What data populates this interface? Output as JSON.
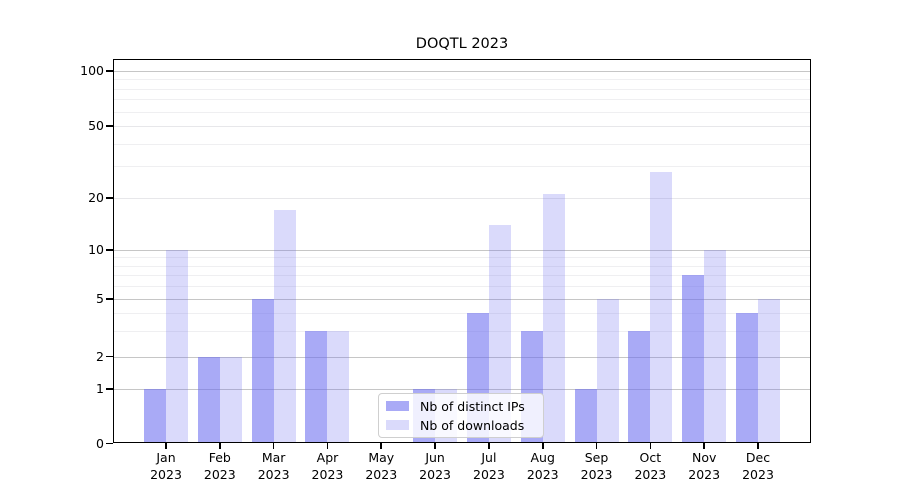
{
  "chart_data": {
    "type": "bar",
    "title": "DOQTL 2023",
    "categories": [
      "Jan 2023",
      "Feb 2023",
      "Mar 2023",
      "Apr 2023",
      "May 2023",
      "Jun 2023",
      "Jul 2023",
      "Aug 2023",
      "Sep 2023",
      "Oct 2023",
      "Nov 2023",
      "Dec 2023"
    ],
    "series": [
      {
        "name": "Nb of distinct IPs",
        "color": "rgba(106,108,240,0.58)",
        "values": [
          1,
          2,
          5,
          3,
          0,
          1,
          4,
          3,
          1,
          3,
          7,
          4
        ]
      },
      {
        "name": "Nb of downloads",
        "color": "rgba(106,108,240,0.25)",
        "values": [
          10,
          2,
          17,
          3,
          0,
          1,
          14,
          21,
          5,
          28,
          10,
          5
        ]
      }
    ],
    "xlabel": "",
    "ylabel": "",
    "yscale": "log-like",
    "ylim": [
      0,
      115
    ],
    "y_ticks": [
      0,
      1,
      2,
      5,
      10,
      20,
      50,
      100
    ],
    "gridlines": {
      "major": [
        1,
        2,
        5,
        10,
        100
      ],
      "light": [
        20,
        50
      ],
      "minor": [
        3,
        4,
        6,
        7,
        8,
        9,
        30,
        40,
        60,
        70,
        80,
        90
      ]
    },
    "grid": true,
    "legend": {
      "position": "lower center"
    }
  },
  "colors": {
    "bar_distinct_ips": "rgba(106,108,240,0.58)",
    "bar_downloads": "rgba(106,108,240,0.25)",
    "grid_major": "#c6c6c6",
    "grid_minor": "#efeff1",
    "spine": "#000000"
  }
}
